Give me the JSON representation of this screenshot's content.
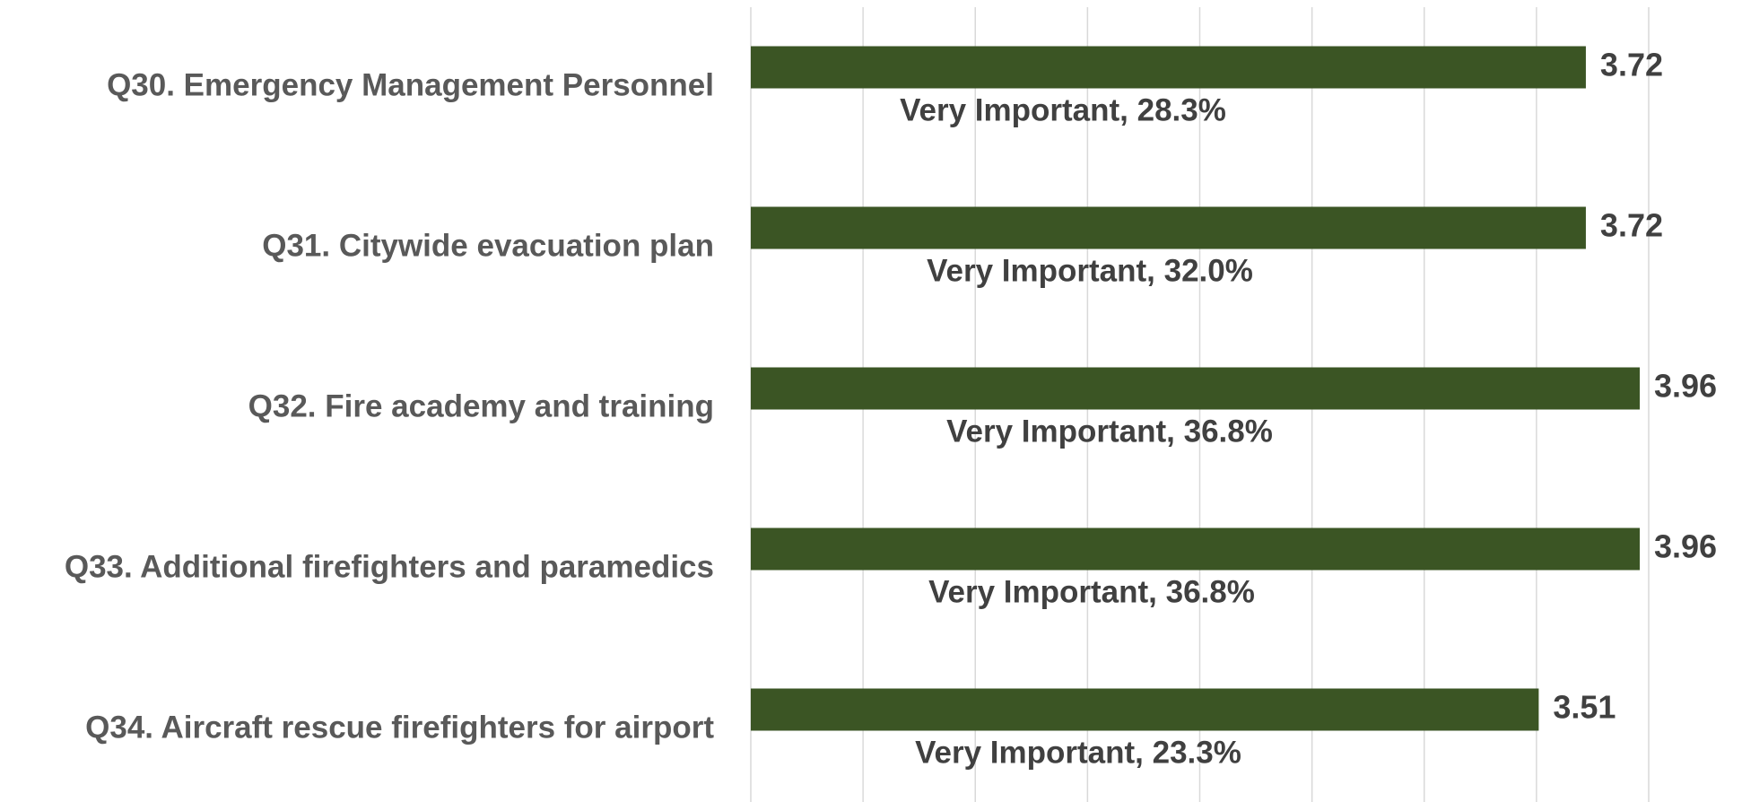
{
  "chart_data": {
    "type": "barh",
    "categories": [
      "Q30. Emergency Management Personnel",
      "Q31. Citywide evacuation plan",
      "Q32. Fire academy and training",
      "Q33. Additional firefighters and paramedics",
      "Q34. Aircraft rescue firefighters for airport"
    ],
    "values": [
      3.72,
      3.72,
      3.96,
      3.96,
      3.51
    ],
    "annotations": [
      "Very Important, 28.3%",
      "Very Important, 32.0%",
      "Very Important, 36.8%",
      "Very Important, 36.8%",
      "Very Important, 23.3%"
    ],
    "color": "#3b5524",
    "xlim": [
      0,
      4
    ],
    "xticks": [
      0,
      0.5,
      1,
      1.5,
      2,
      2.5,
      3,
      3.5,
      4
    ],
    "grid": true
  }
}
